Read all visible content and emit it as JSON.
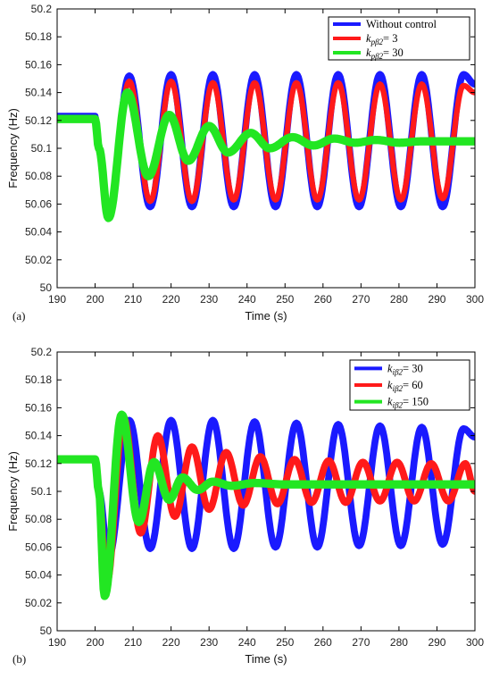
{
  "chart_data": [
    {
      "type": "line",
      "panel_label": "(a)",
      "xlabel": "Time (s)",
      "ylabel": "Frequency (Hz)",
      "xlim": [
        190,
        300
      ],
      "ylim": [
        50,
        50.2
      ],
      "xticks": [
        190,
        200,
        210,
        220,
        230,
        240,
        250,
        260,
        270,
        280,
        290,
        300
      ],
      "yticks": [
        50,
        50.02,
        50.04,
        50.06,
        50.08,
        50.1,
        50.12,
        50.14,
        50.16,
        50.18,
        50.2
      ],
      "legend": "top-right",
      "grid": false,
      "series": [
        {
          "name": "Without control",
          "name_main": "Without control",
          "name_sub": "",
          "name_tail": "",
          "color": "#1a1aff",
          "x": [
            190,
            200,
            201,
            203.5,
            209,
            214.5,
            220,
            225.5,
            231,
            236.5,
            242,
            247.5,
            253,
            258.5,
            264,
            269.5,
            275,
            280.5,
            286,
            291.5,
            297,
            300
          ],
          "y": [
            50.123,
            50.123,
            50.1,
            50.052,
            50.152,
            50.058,
            50.153,
            50.058,
            50.153,
            50.058,
            50.153,
            50.058,
            50.153,
            50.058,
            50.153,
            50.058,
            50.153,
            50.058,
            50.153,
            50.058,
            50.153,
            50.146
          ],
          "band": 0.004
        },
        {
          "name": "kpβ2= 3",
          "name_main": "k",
          "name_sub": "pβ2",
          "name_tail": "= 3",
          "color": "#ff1a1a",
          "x": [
            190,
            200,
            201,
            203.5,
            209,
            214.5,
            220,
            225.5,
            231,
            236.5,
            242,
            247.5,
            253,
            258.5,
            264,
            269.5,
            275,
            280.5,
            286,
            291.5,
            297,
            300
          ],
          "y": [
            50.122,
            50.122,
            50.1,
            50.054,
            50.148,
            50.062,
            50.148,
            50.062,
            50.147,
            50.063,
            50.147,
            50.063,
            50.147,
            50.063,
            50.147,
            50.063,
            50.146,
            50.063,
            50.146,
            50.064,
            50.145,
            50.14
          ],
          "band": 0.003
        },
        {
          "name": "kpβ2= 30",
          "name_main": "k",
          "name_sub": "pβ2",
          "name_tail": "= 30",
          "color": "#22e622",
          "x": [
            190,
            200,
            201,
            203.5,
            208.5,
            214,
            219.5,
            224.5,
            230,
            235,
            241,
            246,
            252,
            257.5,
            263,
            268.5,
            274,
            280,
            286,
            292,
            300
          ],
          "y": [
            50.121,
            50.121,
            50.1,
            50.05,
            50.14,
            50.08,
            50.124,
            50.091,
            50.116,
            50.097,
            50.111,
            50.1,
            50.108,
            50.102,
            50.107,
            50.104,
            50.106,
            50.104,
            50.105,
            50.105,
            50.105
          ],
          "band": 0.005
        }
      ]
    },
    {
      "type": "line",
      "panel_label": "(b)",
      "xlabel": "Time (s)",
      "ylabel": "Frequency (Hz)",
      "xlim": [
        190,
        300
      ],
      "ylim": [
        50,
        50.2
      ],
      "xticks": [
        190,
        200,
        210,
        220,
        230,
        240,
        250,
        260,
        270,
        280,
        290,
        300
      ],
      "yticks": [
        50,
        50.02,
        50.04,
        50.06,
        50.08,
        50.1,
        50.12,
        50.14,
        50.16,
        50.18,
        50.2
      ],
      "legend": "top-right",
      "grid": false,
      "series": [
        {
          "name": "kiβ2= 30",
          "name_main": "k",
          "name_sub": "iβ2",
          "name_tail": "= 30",
          "color": "#1a1aff",
          "x": [
            190,
            200,
            201,
            203.5,
            209,
            214.5,
            220,
            225.5,
            231,
            236.5,
            242,
            247.5,
            253,
            258.5,
            264,
            269.5,
            275,
            280.5,
            286,
            291.5,
            297,
            300
          ],
          "y": [
            50.123,
            50.123,
            50.1,
            50.052,
            50.151,
            50.059,
            50.151,
            50.059,
            50.151,
            50.059,
            50.15,
            50.06,
            50.149,
            50.06,
            50.148,
            50.061,
            50.147,
            50.061,
            50.146,
            50.062,
            50.145,
            50.139
          ],
          "band": 0.004
        },
        {
          "name": "kiβ2= 60",
          "name_main": "k",
          "name_sub": "iβ2",
          "name_tail": "= 60",
          "color": "#ff1a1a",
          "x": [
            190,
            200,
            201,
            203,
            207.5,
            212,
            216.5,
            221,
            225.5,
            230,
            234.5,
            239,
            243.5,
            248,
            252.5,
            257,
            261.5,
            266,
            270.5,
            275,
            279.5,
            284,
            288.5,
            293,
            297.5,
            300
          ],
          "y": [
            50.123,
            50.123,
            50.1,
            50.033,
            50.153,
            50.07,
            50.14,
            50.082,
            50.132,
            50.087,
            50.128,
            50.09,
            50.125,
            50.091,
            50.123,
            50.092,
            50.122,
            50.092,
            50.121,
            50.093,
            50.121,
            50.093,
            50.12,
            50.093,
            50.12,
            50.1
          ],
          "band": 0.004
        },
        {
          "name": "kiβ2= 150",
          "name_main": "k",
          "name_sub": "iβ2",
          "name_tail": "= 150",
          "color": "#22e622",
          "x": [
            190,
            200,
            201,
            202.5,
            207,
            211.5,
            215.5,
            219.5,
            223,
            227,
            231,
            236,
            242,
            250,
            260,
            300
          ],
          "y": [
            50.123,
            50.123,
            50.1,
            50.025,
            50.155,
            50.078,
            50.121,
            50.094,
            50.11,
            50.101,
            50.107,
            50.104,
            50.106,
            50.105,
            50.105,
            50.105
          ],
          "band": 0.005
        }
      ]
    }
  ]
}
